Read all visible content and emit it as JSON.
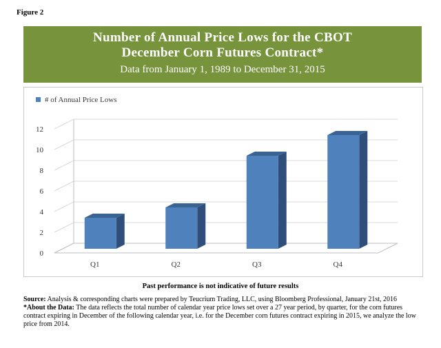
{
  "figure_label": "Figure 2",
  "banner": {
    "title_line1": "Number of Annual Price Lows for the CBOT",
    "title_line2": "December Corn Futures Contract*",
    "subtitle": "Data from January 1, 1989 to December 31, 2015"
  },
  "colors": {
    "banner": "#77933c",
    "bar_front": "#4f81bd",
    "bar_side": "#2f4f7a",
    "bar_top": "#3a6394"
  },
  "chart_data": {
    "type": "bar",
    "categories": [
      "Q1",
      "Q2",
      "Q3",
      "Q4"
    ],
    "series": [
      {
        "name": "# of Annual Price Lows",
        "values": [
          3,
          4,
          9,
          11
        ]
      }
    ],
    "ylim": [
      0,
      12
    ],
    "yticks": [
      0,
      2,
      4,
      6,
      8,
      10,
      12
    ],
    "grid": true,
    "legend": "top-left",
    "three_d": true
  },
  "footer": {
    "disclaimer": "Past performance is not indicative of future results",
    "source_label": "Source:",
    "source_text": " Analysis & corresponding charts were prepared by Teucrium Trading, LLC, using Bloomberg Professional, January 21st, 2016",
    "about_label": "*About the Data:",
    "about_text": " The data reflects the total number of calendar year price lows set over a 27 year period, by quarter, for the corn futures contract expiring in December of the following calendar year, i.e. for the December corn futures contract expiring in 2015, we analyze the low price from 2014."
  }
}
